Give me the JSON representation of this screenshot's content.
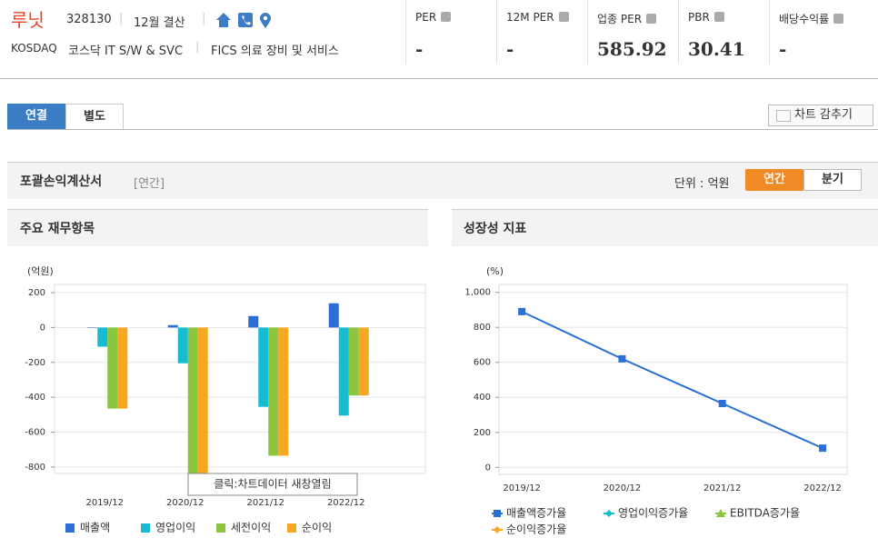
{
  "header": {
    "name": "루닛",
    "code": "328130",
    "fiscal": "12월 결산",
    "market": "KOSDAQ",
    "sector": "코스닥 IT S/W & SVC",
    "fics": "FICS 의료 장비 및 서비스"
  },
  "metrics": [
    {
      "label": "PER",
      "value": "-"
    },
    {
      "label": "12M PER",
      "value": "-"
    },
    {
      "label": "업종 PER",
      "value": "585.92"
    },
    {
      "label": "PBR",
      "value": "30.41"
    },
    {
      "label": "배당수익률",
      "value": "-"
    }
  ],
  "tabs": [
    "연결",
    "별도"
  ],
  "hide_chart": "차트 감추기",
  "section": {
    "title": "포괄손익계산서",
    "period": "[연간]",
    "unit": "단위 : 억원",
    "toggles": [
      "연간",
      "분기"
    ]
  },
  "chart_data": [
    {
      "type": "bar",
      "title": "주요 재무항목",
      "unit_label": "(억원)",
      "categories": [
        "2019/12",
        "2020/12",
        "2021/12",
        "2022/12"
      ],
      "series": [
        {
          "name": "매출액",
          "color": "#2b6fd6",
          "values": [
            0,
            14,
            66,
            139
          ]
        },
        {
          "name": "영업이익",
          "color": "#16bcd2",
          "values": [
            -110,
            -205,
            -455,
            -505
          ]
        },
        {
          "name": "세전이익",
          "color": "#8cc63f",
          "values": [
            -465,
            -840,
            -735,
            -390
          ]
        },
        {
          "name": "순이익",
          "color": "#f7a823",
          "values": [
            -465,
            -840,
            -735,
            -390
          ]
        }
      ],
      "ylim": [
        -837,
        247
      ],
      "yticks": [
        200,
        0,
        -200,
        -400,
        -600,
        -800
      ],
      "grid": true,
      "tooltip": "클릭:차트데이터 새창열림"
    },
    {
      "type": "line",
      "title": "성장성 지표",
      "unit_label": "(%)",
      "categories": [
        "2019/12",
        "2020/12",
        "2021/12",
        "2022/12"
      ],
      "series": [
        {
          "name": "매출액증가율",
          "color": "#2b6fd6",
          "values": [
            890,
            620,
            365,
            110
          ]
        },
        {
          "name": "영업이익증가율",
          "color": "#16bcd2",
          "values": [
            null,
            null,
            null,
            null
          ]
        },
        {
          "name": "EBITDA증가율",
          "color": "#8cc63f",
          "values": [
            null,
            null,
            null,
            null
          ]
        },
        {
          "name": "순이익증가율",
          "color": "#f7a823",
          "values": [
            null,
            null,
            null,
            null
          ]
        }
      ],
      "ylim": [
        -40,
        1045
      ],
      "yticks": [
        0,
        200,
        400,
        600,
        800,
        {
          "value": 1000,
          "label": "1,000"
        }
      ],
      "grid": true
    }
  ]
}
